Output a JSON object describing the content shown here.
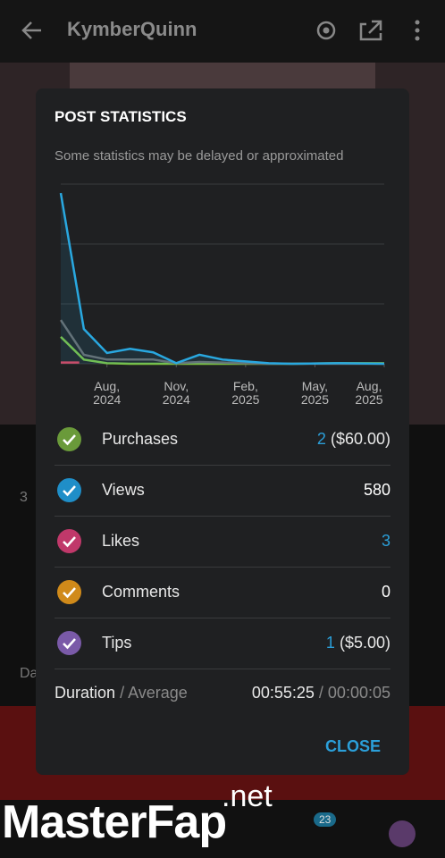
{
  "header": {
    "title": "KymberQuinn"
  },
  "background": {
    "count_text": "3",
    "caption_text": "Da",
    "nav_badge": "23",
    "watermark_main": "MasterFap",
    "watermark_suffix": ".net"
  },
  "modal": {
    "title": "POST STATISTICS",
    "subtitle": "Some statistics may be delayed or approximated",
    "chart_data": {
      "type": "line",
      "grid": true,
      "xlim": [
        0,
        14
      ],
      "xticks": [
        {
          "value": 2,
          "label": "Aug, 2024"
        },
        {
          "value": 5,
          "label": "Nov, 2024"
        },
        {
          "value": 8,
          "label": "Feb, 2025"
        },
        {
          "value": 11,
          "label": "May, 2025"
        },
        {
          "value": 14,
          "label": "Aug, 2025"
        }
      ],
      "ylim": [
        0,
        30
      ],
      "yticks": [
        0,
        10,
        20,
        30
      ],
      "series": [
        {
          "name": "Views",
          "color": "#29a8e0",
          "area": true,
          "x": [
            0,
            1,
            2,
            3,
            4,
            5,
            6,
            7,
            8,
            9,
            10,
            12,
            14
          ],
          "values": [
            28.5,
            5.8,
            1.8,
            2.5,
            1.9,
            0.1,
            1.5,
            0.7,
            0.4,
            0.1,
            0,
            0.1,
            0
          ]
        },
        {
          "name": "Purchases",
          "color": "#6b6b6b",
          "x": [
            0,
            1,
            2,
            3,
            4,
            5,
            6,
            7,
            8,
            9,
            10,
            12,
            14
          ],
          "values": [
            7.3,
            1.5,
            0.7,
            0.7,
            0.7,
            0.1,
            0.3,
            0.2,
            0.1,
            0,
            0,
            0,
            0
          ]
        },
        {
          "name": "Comments",
          "color": "#7cc242",
          "x": [
            0,
            1,
            2,
            3,
            4,
            5,
            6,
            7,
            8,
            9,
            10,
            12,
            14
          ],
          "values": [
            4.5,
            0.7,
            0.1,
            0,
            0,
            0,
            0,
            0,
            0,
            0,
            0,
            0.1,
            0.1
          ]
        },
        {
          "name": "Likes",
          "color": "#e0405a",
          "x": [
            0,
            0.8
          ],
          "values": [
            0.2,
            0.2
          ]
        }
      ]
    },
    "rows": [
      {
        "label": "Purchases",
        "value": "2",
        "extra": "($60.00)",
        "icon_color": "#6a9a3a",
        "value_color": "#2b9fd9"
      },
      {
        "label": "Views",
        "value": "580",
        "icon_color": "#1f8ec8",
        "value_color": "#ffffff"
      },
      {
        "label": "Likes",
        "value": "3",
        "icon_color": "#c0386a",
        "value_color": "#2b9fd9"
      },
      {
        "label": "Comments",
        "value": "0",
        "icon_color": "#d08a1a",
        "value_color": "#ffffff"
      },
      {
        "label": "Tips",
        "value": "1",
        "extra": "($5.00)",
        "icon_color": "#7a5aa8",
        "value_color": "#2b9fd9"
      }
    ],
    "duration": {
      "label": "Duration",
      "label_suffix": "/ Average",
      "value": "00:55:25",
      "value_suffix": "/ 00:00:05"
    },
    "close": "CLOSE"
  }
}
